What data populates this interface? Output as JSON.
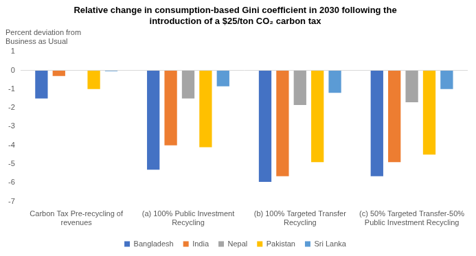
{
  "chart_data": {
    "type": "bar",
    "title": [
      "Relative change in consumption-based Gini coefficient in 2030 following the",
      "introduction of a $25/ton CO₂ carbon tax"
    ],
    "ylabel": [
      "Percent deviation from",
      "Business as Usual"
    ],
    "categories": [
      "Carbon Tax Pre-recycling of revenues",
      "(a) 100% Public Investment Recycling",
      "(b) 100% Targeted Transfer Recycling",
      "(c) 50% Targeted Transfer-50% Public Investment Recycling"
    ],
    "series": [
      {
        "name": "Bangladesh",
        "color": "#4472c4",
        "values": [
          -1.5,
          -5.3,
          -5.95,
          -5.65
        ]
      },
      {
        "name": "India",
        "color": "#ed7d31",
        "values": [
          -0.3,
          -4.0,
          -5.65,
          -4.9
        ]
      },
      {
        "name": "Nepal",
        "color": "#a5a5a5",
        "values": [
          0,
          -1.5,
          -1.85,
          -1.7
        ]
      },
      {
        "name": "Pakistan",
        "color": "#ffc000",
        "values": [
          -1.0,
          -4.1,
          -4.9,
          -4.5
        ]
      },
      {
        "name": "Sri Lanka",
        "color": "#5b9bd5",
        "values": [
          -0.05,
          -0.85,
          -1.2,
          -1.0
        ]
      }
    ],
    "ylim": [
      -7,
      1
    ],
    "yticks": [
      -7,
      -6,
      -5,
      -4,
      -3,
      -2,
      -1,
      0,
      1
    ],
    "grid": false,
    "legend": "bottom"
  }
}
